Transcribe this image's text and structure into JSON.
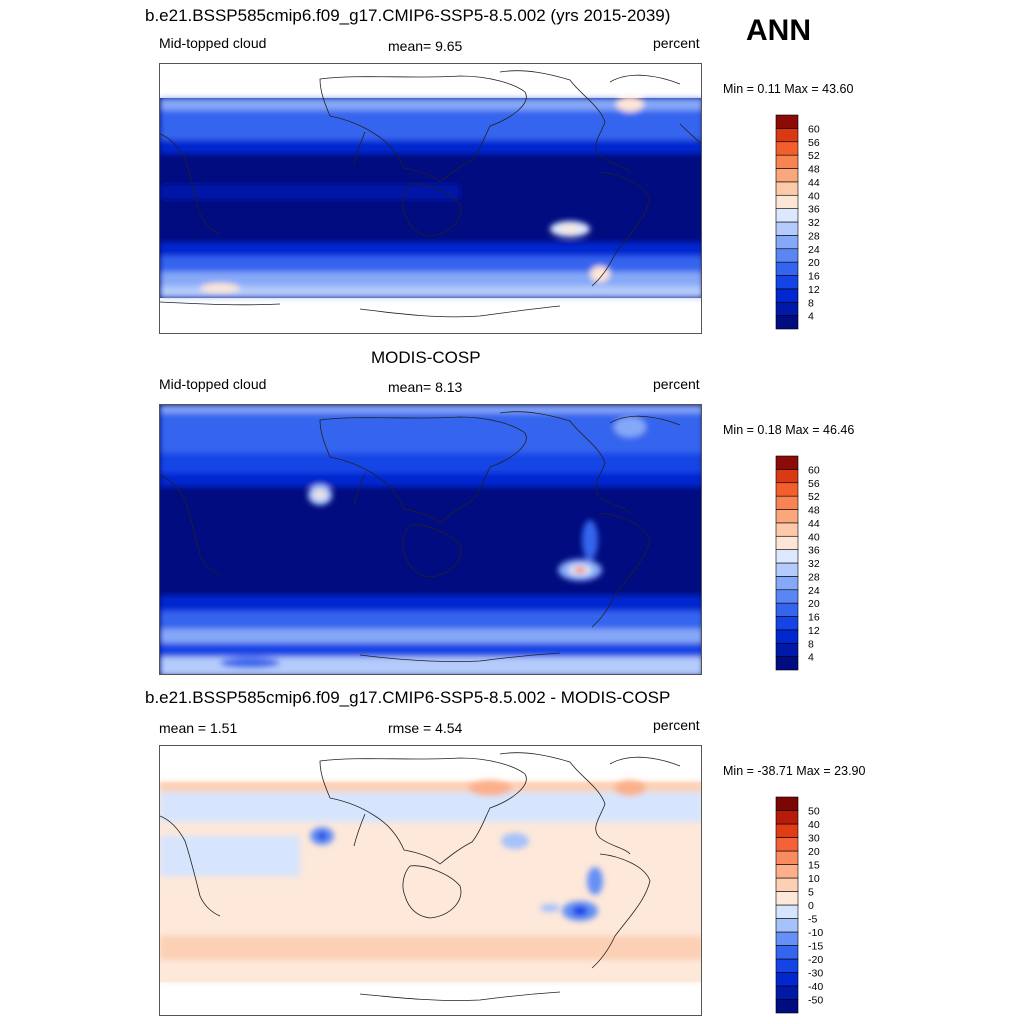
{
  "annotation": "ANN",
  "panels": [
    {
      "id": "model",
      "title": "b.e21.BSSP585cmip6.f09_g17.CMIP6-SSP5-8.5.002 (yrs 2015-2039)",
      "left_label": "Mid-topped cloud",
      "center_label": "mean=   9.65",
      "right_label": "percent",
      "minmax": "Min =   0.11 Max =  43.60"
    },
    {
      "id": "obs",
      "title": "MODIS-COSP",
      "left_label": "Mid-topped cloud",
      "center_label": "mean=   8.13",
      "right_label": "percent",
      "minmax": "Min =   0.18 Max =  46.46"
    },
    {
      "id": "diff",
      "title": "b.e21.BSSP585cmip6.f09_g17.CMIP6-SSP5-8.5.002 - MODIS-COSP",
      "left_label": "mean =   1.51",
      "center_label": "rmse =   4.54",
      "right_label": "percent",
      "minmax": "Min = -38.71 Max =  23.90"
    }
  ],
  "chart_data": [
    {
      "type": "heatmap",
      "title": "b.e21.BSSP585cmip6.f09_g17.CMIP6-SSP5-8.5.002 (yrs 2015-2039)",
      "variable": "Mid-topped cloud",
      "units": "percent",
      "mean": 9.65,
      "min": 0.11,
      "max": 43.6,
      "colorbar_levels": [
        4,
        8,
        12,
        16,
        20,
        24,
        28,
        32,
        36,
        40,
        44,
        48,
        52,
        56,
        60
      ],
      "colorbar_colors": [
        "#000c80",
        "#0019a8",
        "#0027d0",
        "#1444e6",
        "#3465ee",
        "#5a86f4",
        "#86a8f8",
        "#b4cbfb",
        "#dbe8fd",
        "#fde6d6",
        "#fcc9a9",
        "#fba77c",
        "#f78452",
        "#f35f2c",
        "#d93a14",
        "#8c0b06"
      ]
    },
    {
      "type": "heatmap",
      "title": "MODIS-COSP",
      "variable": "Mid-topped cloud",
      "units": "percent",
      "mean": 8.13,
      "min": 0.18,
      "max": 46.46,
      "colorbar_levels": [
        4,
        8,
        12,
        16,
        20,
        24,
        28,
        32,
        36,
        40,
        44,
        48,
        52,
        56,
        60
      ],
      "colorbar_colors": [
        "#000c80",
        "#0019a8",
        "#0027d0",
        "#1444e6",
        "#3465ee",
        "#5a86f4",
        "#86a8f8",
        "#b4cbfb",
        "#dbe8fd",
        "#fde6d6",
        "#fcc9a9",
        "#fba77c",
        "#f78452",
        "#f35f2c",
        "#d93a14",
        "#8c0b06"
      ]
    },
    {
      "type": "heatmap",
      "title": "b.e21.BSSP585cmip6.f09_g17.CMIP6-SSP5-8.5.002 - MODIS-COSP",
      "units": "percent",
      "mean": 1.51,
      "rmse": 4.54,
      "min": -38.71,
      "max": 23.9,
      "colorbar_levels": [
        -50,
        -40,
        -30,
        -20,
        -15,
        -10,
        -5,
        0,
        5,
        10,
        15,
        20,
        30,
        40,
        50
      ],
      "colorbar_colors": [
        "#000c80",
        "#0019a8",
        "#0027d0",
        "#1444e6",
        "#3465ee",
        "#6690f5",
        "#a6c2fa",
        "#d6e5fd",
        "#fde8da",
        "#fcd0b4",
        "#fbb08a",
        "#f98b60",
        "#f5623a",
        "#e23c17",
        "#b91b0a",
        "#7a0704"
      ]
    }
  ]
}
